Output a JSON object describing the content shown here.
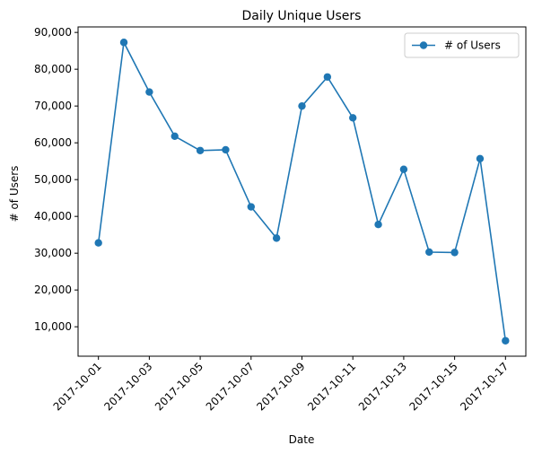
{
  "chart_data": {
    "type": "line",
    "title": "Daily Unique Users",
    "xlabel": "Date",
    "ylabel": "# of Users",
    "x": [
      "2017-10-01",
      "2017-10-02",
      "2017-10-03",
      "2017-10-04",
      "2017-10-05",
      "2017-10-06",
      "2017-10-07",
      "2017-10-08",
      "2017-10-09",
      "2017-10-10",
      "2017-10-11",
      "2017-10-12",
      "2017-10-13",
      "2017-10-14",
      "2017-10-15",
      "2017-10-16",
      "2017-10-17"
    ],
    "x_ticks": [
      "2017-10-01",
      "2017-10-03",
      "2017-10-05",
      "2017-10-07",
      "2017-10-09",
      "2017-10-11",
      "2017-10-13",
      "2017-10-15",
      "2017-10-17"
    ],
    "y_ticks": [
      10000,
      20000,
      30000,
      40000,
      50000,
      60000,
      70000,
      80000,
      90000
    ],
    "y_tick_labels": [
      "10,000",
      "20,000",
      "30,000",
      "40,000",
      "50,000",
      "60,000",
      "70,000",
      "80,000",
      "90,000"
    ],
    "ylim": [
      2000,
      91500
    ],
    "series": [
      {
        "name": "# of Users",
        "color": "#1f77b4",
        "marker": "circle",
        "values": [
          32800,
          87300,
          73800,
          61800,
          57900,
          58100,
          42600,
          34100,
          70000,
          77900,
          66800,
          37800,
          52800,
          30300,
          30200,
          55700,
          6200
        ]
      }
    ],
    "legend": {
      "position": "top-right"
    },
    "grid": false
  }
}
